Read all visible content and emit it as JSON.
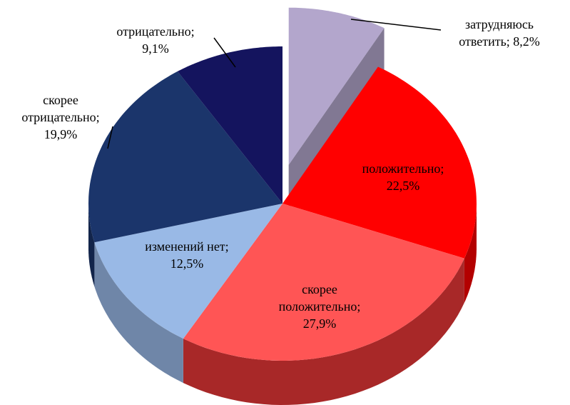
{
  "chart_data": {
    "type": "pie",
    "three_d": true,
    "exploded_slice": "затрудняюсь ответить",
    "title": "",
    "slices": [
      {
        "name": "затрудняюсь ответить",
        "value": 8.2,
        "label_lines": [
          "затрудняюсь",
          "ответить; 8,2%"
        ],
        "color": "#B3A6CC",
        "side_color": "#8E85A3"
      },
      {
        "name": "положительно",
        "value": 22.5,
        "label_lines": [
          "положительно;",
          "22,5%"
        ],
        "color": "#FF0000",
        "side_color": "#B30000"
      },
      {
        "name": "скорее положительно",
        "value": 27.9,
        "label_lines": [
          "скорее",
          "положительно;",
          "27,9%"
        ],
        "color": "#FF5555",
        "side_color": "#A82828"
      },
      {
        "name": "изменений нет",
        "value": 12.5,
        "label_lines": [
          "изменений нет;",
          "12,5%"
        ],
        "color": "#99B9E6",
        "side_color": "#6F86A8"
      },
      {
        "name": "скорее отрицательно",
        "value": 19.9,
        "label_lines": [
          "скорее",
          "отрицательно;",
          "19,9%"
        ],
        "color": "#1B356B",
        "side_color": "#12244A"
      },
      {
        "name": "отрицательно",
        "value": 9.1,
        "label_lines": [
          "отрицательно;",
          "9,1%"
        ],
        "color": "#14145E",
        "side_color": "#0D0D40"
      }
    ]
  }
}
